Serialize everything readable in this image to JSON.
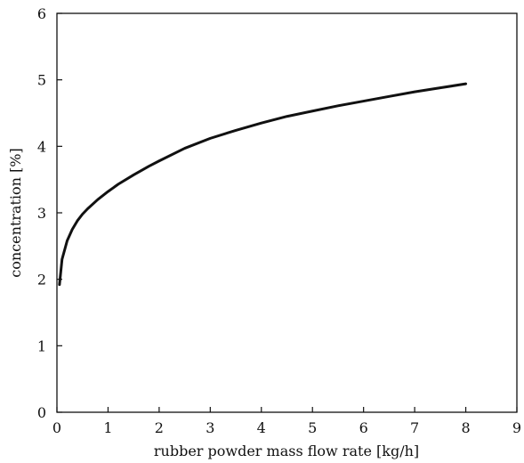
{
  "chart_data": {
    "type": "line",
    "title": "",
    "xlabel": "rubber powder mass flow rate [kg/h]",
    "ylabel": "concentration [%]",
    "xlim": [
      0,
      9
    ],
    "ylim": [
      0,
      6
    ],
    "xticks": [
      0,
      1,
      2,
      3,
      4,
      5,
      6,
      7,
      8,
      9
    ],
    "yticks": [
      0,
      1,
      2,
      3,
      4,
      5,
      6
    ],
    "xtick_labels": [
      "0",
      "1",
      "2",
      "3",
      "4",
      "5",
      "6",
      "7",
      "8",
      "9"
    ],
    "ytick_labels": [
      "0",
      "1",
      "2",
      "3",
      "4",
      "5",
      "6"
    ],
    "grid": false,
    "legend": "none",
    "series": [
      {
        "color": "#111111",
        "x": [
          0.05,
          0.1,
          0.2,
          0.3,
          0.4,
          0.5,
          0.6,
          0.8,
          1.0,
          1.2,
          1.5,
          1.8,
          2.0,
          2.5,
          3.0,
          3.5,
          4.0,
          4.5,
          5.0,
          5.5,
          6.0,
          6.5,
          7.0,
          7.5,
          8.0
        ],
        "y": [
          1.92,
          2.3,
          2.58,
          2.75,
          2.88,
          2.98,
          3.06,
          3.2,
          3.32,
          3.43,
          3.57,
          3.7,
          3.78,
          3.97,
          4.12,
          4.24,
          4.35,
          4.45,
          4.53,
          4.61,
          4.68,
          4.75,
          4.82,
          4.88,
          4.94
        ]
      }
    ]
  }
}
